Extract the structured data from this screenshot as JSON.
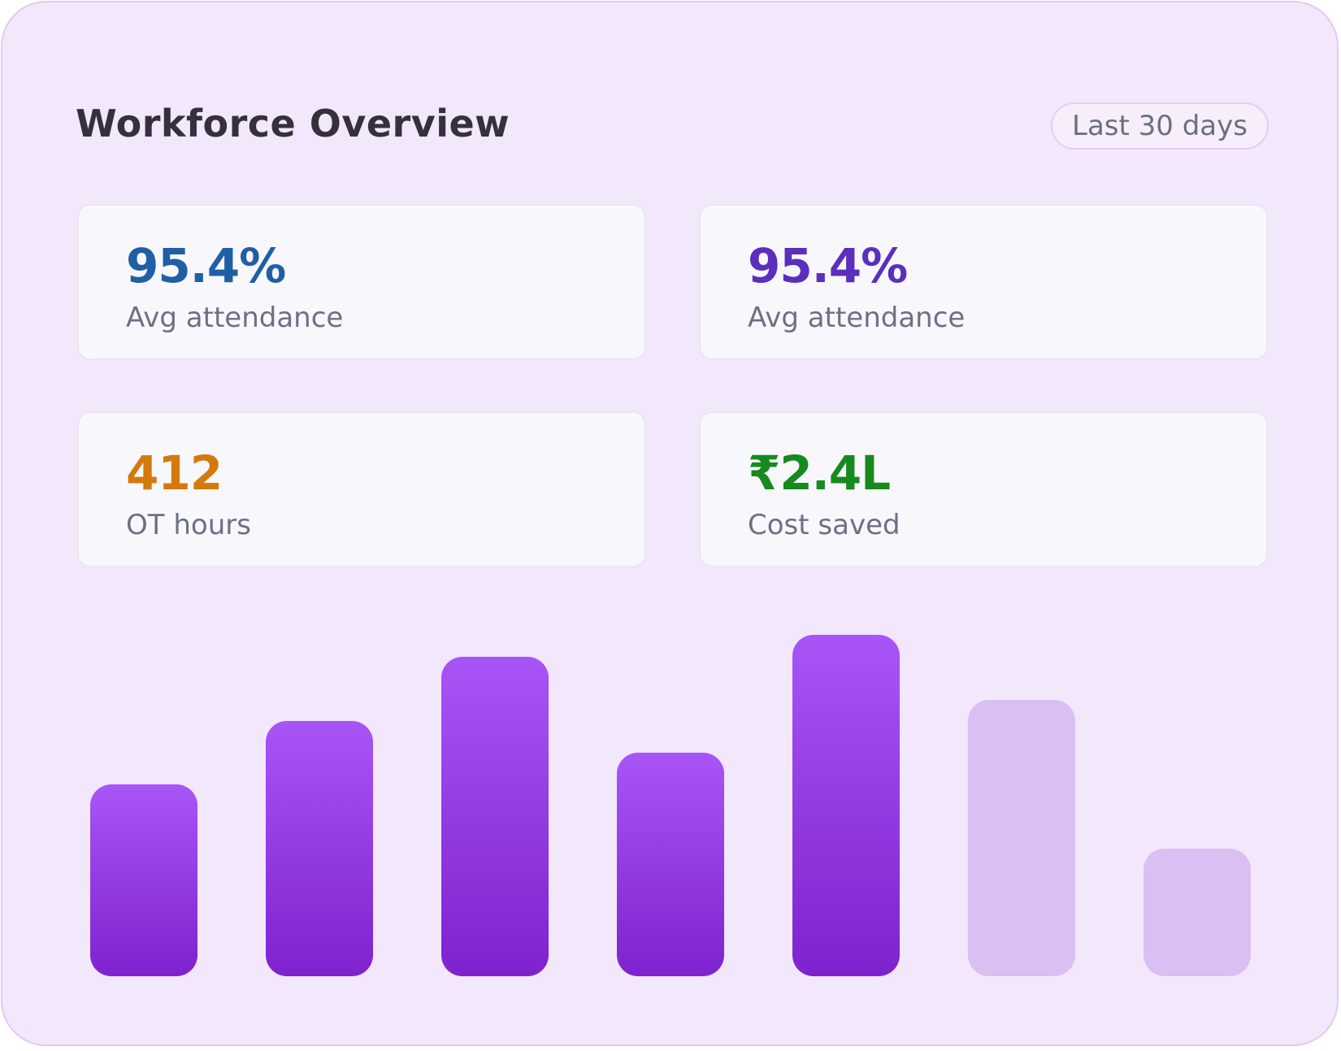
{
  "header": {
    "title": "Workforce Overview",
    "range_label": "Last 30 days"
  },
  "stats": [
    {
      "value": "95.4%",
      "label": "Avg attendance",
      "color": "#1f5fa5"
    },
    {
      "value": "95.4%",
      "label": "Avg attendance",
      "color": "#5a2fbd"
    },
    {
      "value": "412",
      "label": "OT hours",
      "color": "#d47a0c"
    },
    {
      "value": "₹2.4L",
      "label": "Cost saved",
      "color": "#168a1d"
    }
  ],
  "chart_data": {
    "type": "bar",
    "values": [
      236,
      314,
      393,
      275,
      420,
      340,
      157
    ],
    "highlighted": [
      true,
      true,
      true,
      true,
      true,
      false,
      false
    ],
    "ylim": [
      0,
      420
    ],
    "colors": {
      "active_top": "#a855f7",
      "active_bottom": "#7e22ce",
      "inactive": "#d9bff2"
    }
  }
}
